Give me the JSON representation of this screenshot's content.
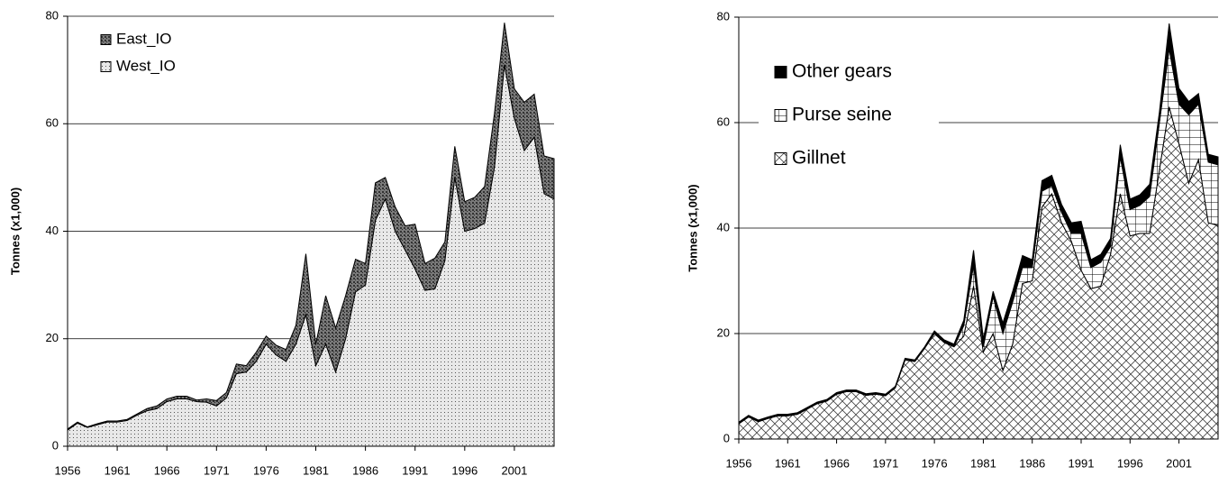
{
  "chart_data": [
    {
      "type": "stacked-area",
      "y_label": "Tonnes (x1,000)",
      "x": [
        1956,
        1957,
        1958,
        1959,
        1960,
        1961,
        1962,
        1963,
        1964,
        1965,
        1966,
        1967,
        1968,
        1969,
        1970,
        1971,
        1972,
        1973,
        1974,
        1975,
        1976,
        1977,
        1978,
        1979,
        1980,
        1981,
        1982,
        1983,
        1984,
        1985,
        1986,
        1987,
        1988,
        1989,
        1990,
        1991,
        1992,
        1993,
        1994,
        1995,
        1996,
        1997,
        1998,
        1999,
        2000,
        2001,
        2002,
        2003,
        2004,
        2005
      ],
      "xlim": [
        1956,
        2005
      ],
      "xticks": [
        1956,
        1961,
        1966,
        1971,
        1976,
        1981,
        1986,
        1991,
        1996,
        2001
      ],
      "ylim": [
        0,
        80
      ],
      "yticks": [
        0,
        20,
        40,
        60,
        80
      ],
      "grid": true,
      "legend": "upper left",
      "series": [
        {
          "name": "West_IO",
          "color": "#e8e8e8",
          "values": [
            3.0,
            4.3,
            3.5,
            4.0,
            4.5,
            4.5,
            4.8,
            5.8,
            6.6,
            7.0,
            8.3,
            8.8,
            8.8,
            8.3,
            8.2,
            7.5,
            9.0,
            13.5,
            13.8,
            15.8,
            19.0,
            17.0,
            15.8,
            19.0,
            24.5,
            15.0,
            19.0,
            13.8,
            20.0,
            28.7,
            30.0,
            42.0,
            46.0,
            40.0,
            36.5,
            33.0,
            29.0,
            29.3,
            34.5,
            50.0,
            40.0,
            40.5,
            41.5,
            52.0,
            71.0,
            61.0,
            55.0,
            57.5,
            47.0,
            46.0
          ]
        },
        {
          "name": "East_IO",
          "color": "#7a7a7a",
          "values": [
            0.2,
            0.2,
            0.1,
            0.2,
            0.2,
            0.2,
            0.2,
            0.2,
            0.4,
            0.5,
            0.5,
            0.5,
            0.5,
            0.3,
            0.6,
            1.0,
            1.0,
            1.8,
            1.2,
            1.7,
            1.5,
            1.8,
            2.2,
            3.5,
            11.3,
            4.0,
            9.0,
            8.2,
            8.0,
            6.1,
            4.0,
            7.0,
            4.0,
            4.5,
            4.5,
            8.3,
            5.0,
            5.7,
            3.5,
            5.8,
            5.5,
            5.8,
            6.8,
            10.0,
            7.8,
            5.5,
            9.0,
            8.0,
            7.0,
            7.5
          ]
        }
      ]
    },
    {
      "type": "stacked-area",
      "y_label": "Tonnes (x1,000)",
      "x": [
        1956,
        1957,
        1958,
        1959,
        1960,
        1961,
        1962,
        1963,
        1964,
        1965,
        1966,
        1967,
        1968,
        1969,
        1970,
        1971,
        1972,
        1973,
        1974,
        1975,
        1976,
        1977,
        1978,
        1979,
        1980,
        1981,
        1982,
        1983,
        1984,
        1985,
        1986,
        1987,
        1988,
        1989,
        1990,
        1991,
        1992,
        1993,
        1994,
        1995,
        1996,
        1997,
        1998,
        1999,
        2000,
        2001,
        2002,
        2003,
        2004,
        2005
      ],
      "xlim": [
        1956,
        2005
      ],
      "xticks": [
        1956,
        1961,
        1966,
        1971,
        1976,
        1981,
        1986,
        1991,
        1996,
        2001
      ],
      "ylim": [
        0,
        80
      ],
      "yticks": [
        0,
        20,
        40,
        60,
        80
      ],
      "grid": true,
      "legend": "upper left",
      "series": [
        {
          "name": "Gillnet",
          "color": "#ffffff",
          "values": [
            2.9,
            4.2,
            3.3,
            3.9,
            4.4,
            4.4,
            4.7,
            5.7,
            6.7,
            7.2,
            8.5,
            9.0,
            9.0,
            8.3,
            8.5,
            8.2,
            9.7,
            15.0,
            14.7,
            17.2,
            20.0,
            18.3,
            17.5,
            19.5,
            29.0,
            16.5,
            20.0,
            13.0,
            18.0,
            29.5,
            30.0,
            44.0,
            46.5,
            41.0,
            37.5,
            32.0,
            28.5,
            29.0,
            35.0,
            46.5,
            38.5,
            39.0,
            39.0,
            51.0,
            63.0,
            56.0,
            48.5,
            53.0,
            41.0,
            40.5
          ]
        },
        {
          "name": "Purse seine",
          "color": "#ffffff",
          "values": [
            0,
            0,
            0,
            0,
            0,
            0,
            0,
            0,
            0,
            0,
            0,
            0,
            0,
            0,
            0,
            0,
            0,
            0,
            0,
            0,
            0,
            0,
            0,
            2.0,
            4.0,
            1.0,
            7.0,
            7.0,
            8.0,
            3.0,
            2.5,
            3.0,
            1.5,
            2.0,
            1.5,
            7.0,
            4.0,
            4.5,
            1.5,
            7.0,
            5.0,
            5.3,
            7.0,
            9.0,
            11.0,
            7.5,
            13.0,
            10.5,
            11.5,
            11.5
          ]
        },
        {
          "name": "Other gears",
          "color": "#000000",
          "values": [
            0.3,
            0.3,
            0.3,
            0.3,
            0.3,
            0.3,
            0.3,
            0.3,
            0.3,
            0.3,
            0.3,
            0.3,
            0.3,
            0.3,
            0.3,
            0.3,
            0.3,
            0.3,
            0.3,
            0.3,
            0.5,
            0.5,
            0.5,
            1.0,
            2.8,
            1.5,
            1.0,
            2.0,
            2.0,
            2.3,
            1.5,
            2.0,
            2.0,
            1.5,
            2.0,
            2.3,
            1.5,
            1.5,
            1.5,
            2.3,
            2.0,
            2.0,
            2.3,
            2.0,
            4.8,
            3.0,
            2.5,
            2.0,
            1.5,
            1.5
          ]
        }
      ]
    }
  ]
}
